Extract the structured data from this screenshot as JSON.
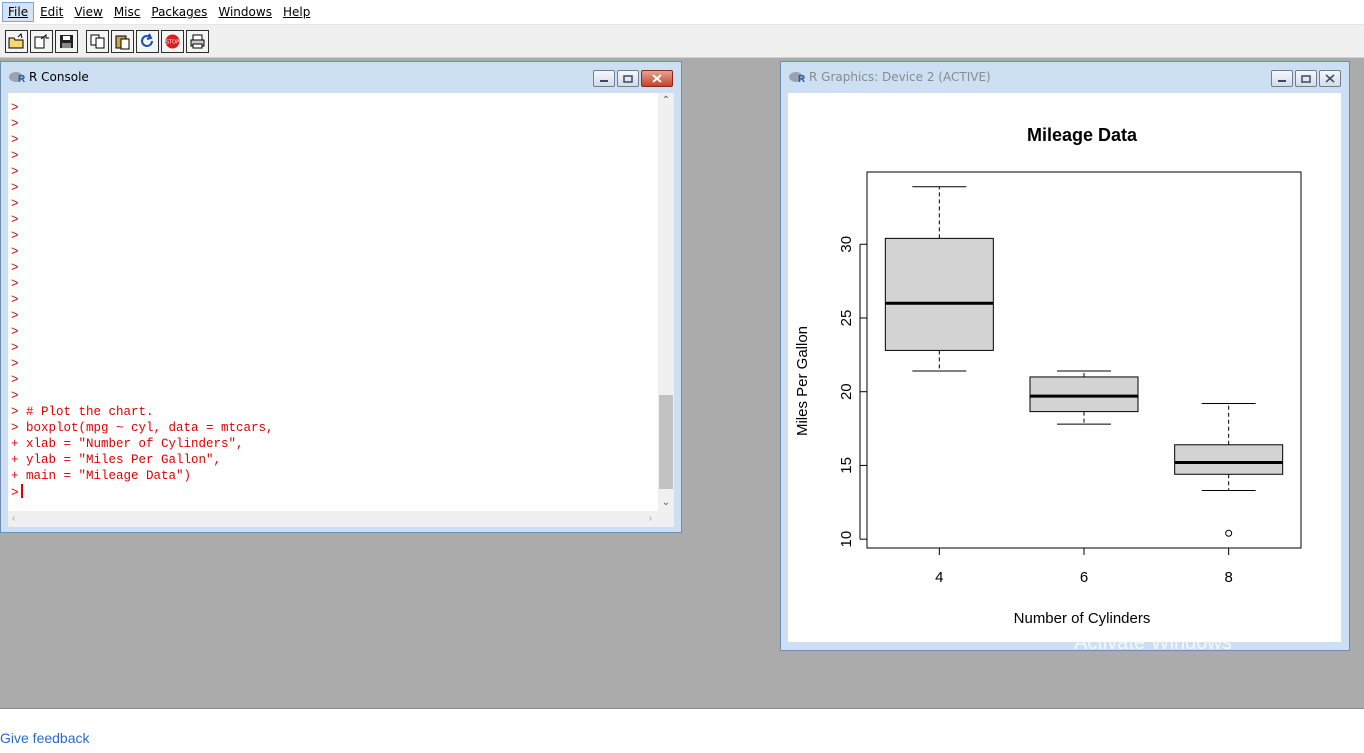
{
  "menu": {
    "items": [
      {
        "label": "File"
      },
      {
        "label": "Edit"
      },
      {
        "label": "View"
      },
      {
        "label": "Misc"
      },
      {
        "label": "Packages"
      },
      {
        "label": "Windows"
      },
      {
        "label": "Help"
      }
    ]
  },
  "toolbar": {
    "buttons": [
      "open-script-icon",
      "load-workspace-icon",
      "save-icon",
      "copy-icon",
      "paste-icon",
      "refresh-icon",
      "stop-icon",
      "print-icon"
    ],
    "stop_label": "STOP"
  },
  "console": {
    "title": "R Console",
    "prompt_lines": [
      ">",
      ">",
      ">",
      ">",
      ">",
      ">",
      ">",
      ">",
      ">",
      ">",
      ">",
      ">",
      ">",
      ">",
      ">",
      ">",
      ">",
      ">",
      ">"
    ],
    "code_lines": [
      "> # Plot the chart.",
      "> boxplot(mpg ~ cyl, data = mtcars,",
      "+ xlab = \"Number of Cylinders\",",
      "+ ylab = \"Miles Per Gallon\",",
      "+ main = \"Mileage Data\")"
    ],
    "current_prompt": ">"
  },
  "graphics": {
    "title": "R Graphics: Device 2 (ACTIVE)"
  },
  "chart_data": {
    "type": "boxplot",
    "title": "Mileage Data",
    "xlabel": "Number of Cylinders",
    "ylabel": "Miles Per Gallon",
    "categories": [
      "4",
      "6",
      "8"
    ],
    "boxes": [
      {
        "category": "4",
        "min": 21.4,
        "q1": 22.8,
        "median": 26.0,
        "q3": 30.4,
        "max": 33.9,
        "outliers": []
      },
      {
        "category": "6",
        "min": 17.8,
        "q1": 18.65,
        "median": 19.7,
        "q3": 21.0,
        "max": 21.4,
        "outliers": []
      },
      {
        "category": "8",
        "min": 13.3,
        "q1": 14.4,
        "median": 15.2,
        "q3": 16.4,
        "max": 19.2,
        "outliers": [
          10.4
        ]
      }
    ],
    "yticks": [
      10,
      15,
      20,
      25,
      30
    ],
    "ylim": [
      9.4,
      34.9
    ],
    "box_color": "#d3d3d3"
  },
  "watermark": "Activate Windows",
  "feedback": "Give feedback"
}
